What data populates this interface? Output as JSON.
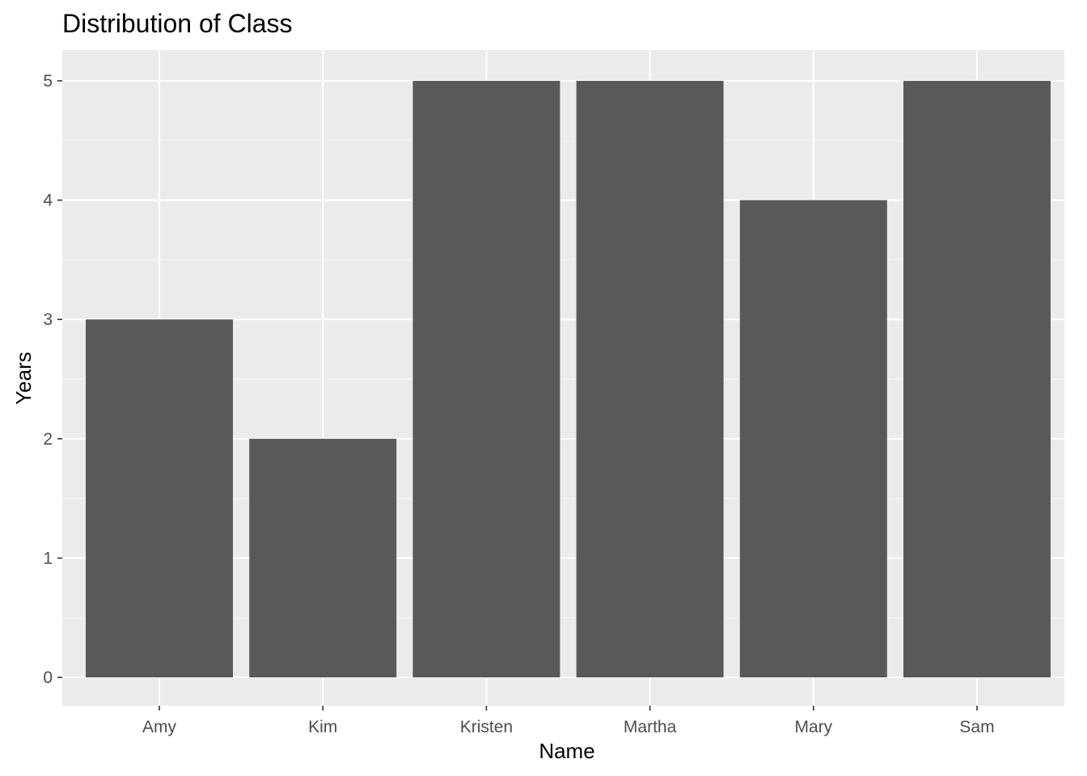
{
  "chart_data": {
    "type": "bar",
    "title": "Distribution of Class",
    "xlabel": "Name",
    "ylabel": "Years",
    "categories": [
      "Amy",
      "Kim",
      "Kristen",
      "Martha",
      "Mary",
      "Sam"
    ],
    "values": [
      3,
      2,
      5,
      5,
      4,
      5
    ],
    "ylim": [
      0,
      5.25
    ],
    "yticks": [
      "0",
      "1",
      "2",
      "3",
      "4",
      "5"
    ],
    "grid": true,
    "colors": {
      "panel_background": "#ebebeb",
      "grid_major": "#ffffff",
      "grid_minor": "#f5f5f5",
      "bar_fill": "#595959",
      "tick_text": "#4d4d4d",
      "tick_mark": "#333333"
    }
  }
}
